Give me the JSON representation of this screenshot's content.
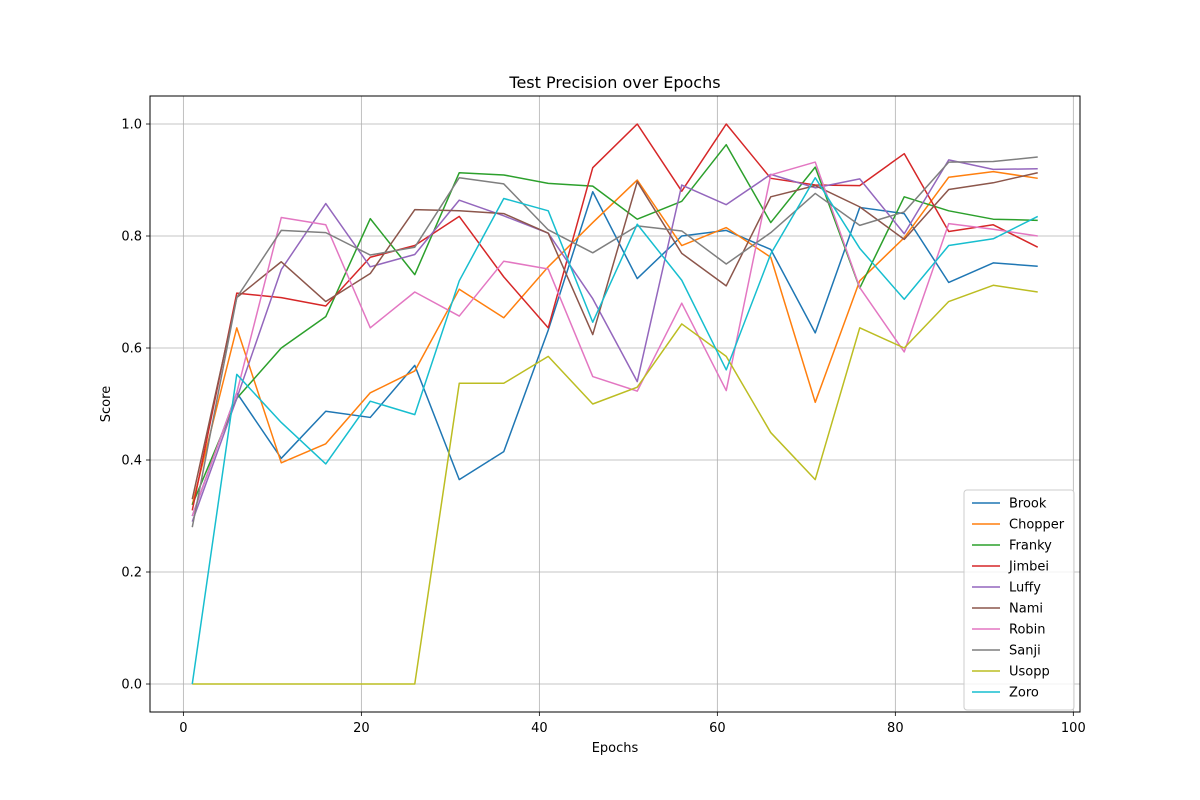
{
  "chart_data": {
    "type": "line",
    "title": "Test Precision over Epochs",
    "xlabel": "Epochs",
    "ylabel": "Score",
    "xlim": [
      -3.75,
      100.75
    ],
    "ylim": [
      -0.05,
      1.05
    ],
    "xticks": [
      0,
      20,
      40,
      60,
      80,
      100
    ],
    "xtick_labels": [
      "0",
      "20",
      "40",
      "60",
      "80",
      "100"
    ],
    "yticks": [
      0.0,
      0.2,
      0.4,
      0.6,
      0.8,
      1.0
    ],
    "ytick_labels": [
      "0.0",
      "0.2",
      "0.4",
      "0.6",
      "0.8",
      "1.0"
    ],
    "grid": true,
    "legend_position": "lower-right",
    "x": [
      1,
      6,
      11,
      16,
      21,
      26,
      31,
      36,
      41,
      46,
      51,
      56,
      61,
      66,
      71,
      76,
      81,
      86,
      91,
      96
    ],
    "series": [
      {
        "name": "Brook",
        "color": "#1f77b4",
        "values": [
          0.3,
          0.52,
          0.403,
          0.487,
          0.476,
          0.569,
          0.365,
          0.415,
          0.632,
          0.879,
          0.724,
          0.8,
          0.81,
          0.776,
          0.627,
          0.851,
          0.84,
          0.717,
          0.752,
          0.746
        ]
      },
      {
        "name": "Chopper",
        "color": "#ff7f0e",
        "values": [
          0.32,
          0.636,
          0.395,
          0.429,
          0.52,
          0.559,
          0.705,
          0.654,
          0.745,
          0.824,
          0.9,
          0.783,
          0.815,
          0.762,
          0.503,
          0.72,
          0.797,
          0.905,
          0.915,
          0.903
        ]
      },
      {
        "name": "Franky",
        "color": "#2ca02c",
        "values": [
          0.32,
          0.51,
          0.6,
          0.656,
          0.831,
          0.731,
          0.913,
          0.909,
          0.894,
          0.889,
          0.83,
          0.862,
          0.963,
          0.824,
          0.923,
          0.707,
          0.87,
          0.845,
          0.83,
          0.828
        ]
      },
      {
        "name": "Jimbei",
        "color": "#d62728",
        "values": [
          0.31,
          0.698,
          0.69,
          0.675,
          0.762,
          0.783,
          0.835,
          0.727,
          0.636,
          0.922,
          1.0,
          0.88,
          1.0,
          0.903,
          0.891,
          0.89,
          0.947,
          0.808,
          0.82,
          0.78
        ]
      },
      {
        "name": "Luffy",
        "color": "#9467bd",
        "values": [
          0.29,
          0.51,
          0.74,
          0.858,
          0.745,
          0.767,
          0.864,
          0.836,
          0.805,
          0.688,
          0.54,
          0.891,
          0.856,
          0.91,
          0.886,
          0.902,
          0.804,
          0.936,
          0.919,
          0.92
        ]
      },
      {
        "name": "Nami",
        "color": "#8c564b",
        "values": [
          0.33,
          0.69,
          0.754,
          0.683,
          0.733,
          0.847,
          0.845,
          0.84,
          0.805,
          0.624,
          0.897,
          0.769,
          0.711,
          0.87,
          0.89,
          0.852,
          0.794,
          0.883,
          0.895,
          0.913
        ]
      },
      {
        "name": "Robin",
        "color": "#e377c2",
        "values": [
          0.3,
          0.52,
          0.833,
          0.82,
          0.636,
          0.7,
          0.657,
          0.755,
          0.741,
          0.549,
          0.523,
          0.68,
          0.524,
          0.909,
          0.932,
          0.708,
          0.593,
          0.822,
          0.812,
          0.8
        ]
      },
      {
        "name": "Sanji",
        "color": "#7f7f7f",
        "values": [
          0.28,
          0.69,
          0.81,
          0.806,
          0.766,
          0.78,
          0.904,
          0.893,
          0.811,
          0.77,
          0.818,
          0.809,
          0.75,
          0.806,
          0.876,
          0.819,
          0.843,
          0.932,
          0.933,
          0.941
        ]
      },
      {
        "name": "Usopp",
        "color": "#bcbd22",
        "values": [
          0.0,
          0.0,
          0.0,
          0.0,
          0.0,
          0.0,
          0.537,
          0.537,
          0.585,
          0.5,
          0.53,
          0.643,
          0.585,
          0.449,
          0.365,
          0.636,
          0.6,
          0.683,
          0.712,
          0.7
        ]
      },
      {
        "name": "Zoro",
        "color": "#17becf",
        "values": [
          0.0,
          0.553,
          0.467,
          0.393,
          0.505,
          0.481,
          0.72,
          0.867,
          0.845,
          0.646,
          0.821,
          0.721,
          0.561,
          0.768,
          0.904,
          0.778,
          0.687,
          0.783,
          0.795,
          0.835
        ]
      }
    ]
  }
}
